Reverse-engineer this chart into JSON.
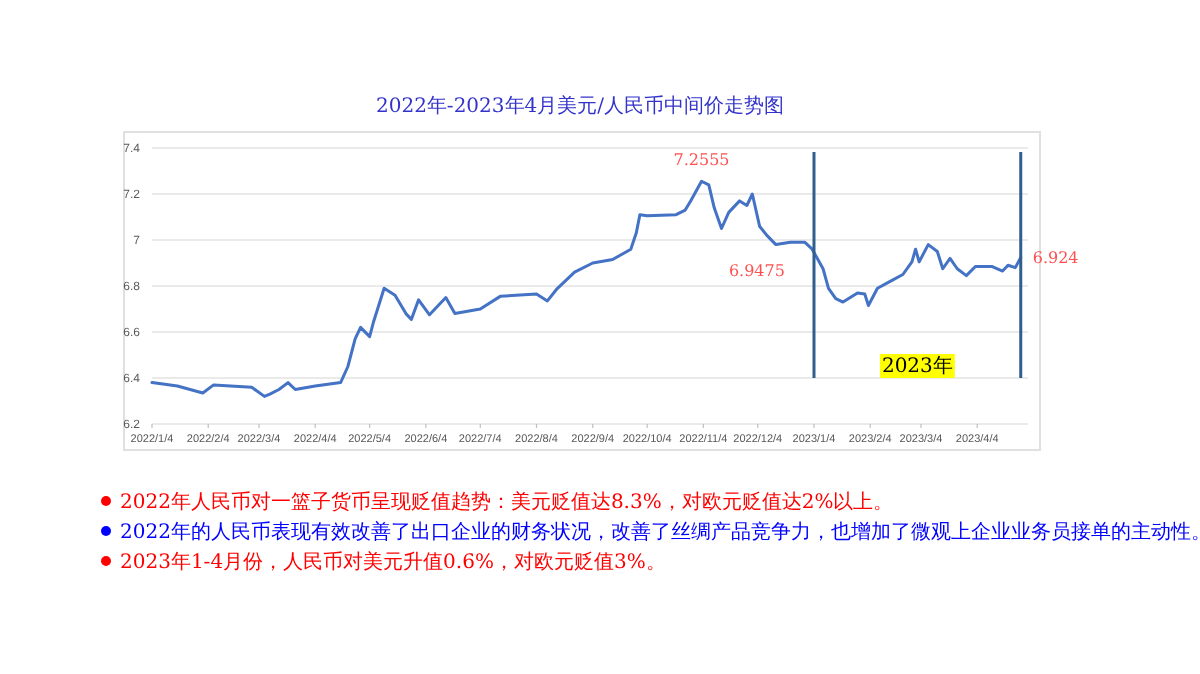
{
  "chart_data": {
    "type": "line",
    "title": "2022年-2023年4月美元/人民币中间价走势图",
    "x": [
      "2022-01-04",
      "2022-01-18",
      "2022-02-01",
      "2022-02-07",
      "2022-02-28",
      "2022-03-07",
      "2022-03-10",
      "2022-03-15",
      "2022-03-20",
      "2022-03-24",
      "2022-04-04",
      "2022-04-18",
      "2022-04-22",
      "2022-04-26",
      "2022-04-29",
      "2022-05-04",
      "2022-05-06",
      "2022-05-12",
      "2022-05-18",
      "2022-05-24",
      "2022-05-27",
      "2022-05-31",
      "2022-06-06",
      "2022-06-15",
      "2022-06-20",
      "2022-07-04",
      "2022-07-15",
      "2022-08-04",
      "2022-08-10",
      "2022-08-15",
      "2022-08-25",
      "2022-09-04",
      "2022-09-15",
      "2022-09-25",
      "2022-09-28",
      "2022-09-30",
      "2022-10-04",
      "2022-10-20",
      "2022-10-25",
      "2022-10-28",
      "2022-11-03",
      "2022-11-07",
      "2022-11-10",
      "2022-11-14",
      "2022-11-18",
      "2022-11-24",
      "2022-11-28",
      "2022-12-01",
      "2022-12-05",
      "2022-12-09",
      "2022-12-14",
      "2022-12-22",
      "2022-12-30",
      "2023-01-03",
      "2023-01-09",
      "2023-01-12",
      "2023-01-16",
      "2023-01-20",
      "2023-01-28",
      "2023-02-01",
      "2023-02-03",
      "2023-02-08",
      "2023-02-15",
      "2023-02-22",
      "2023-02-27",
      "2023-03-01",
      "2023-03-03",
      "2023-03-08",
      "2023-03-13",
      "2023-03-16",
      "2023-03-20",
      "2023-03-24",
      "2023-03-29",
      "2023-04-03",
      "2023-04-12",
      "2023-04-18",
      "2023-04-21",
      "2023-04-25",
      "2023-04-28"
    ],
    "series": [
      {
        "color": "#4472c4",
        "values": [
          6.38,
          6.365,
          6.335,
          6.37,
          6.36,
          6.32,
          6.33,
          6.35,
          6.38,
          6.35,
          6.365,
          6.38,
          6.45,
          6.57,
          6.62,
          6.58,
          6.64,
          6.79,
          6.76,
          6.68,
          6.655,
          6.74,
          6.675,
          6.75,
          6.68,
          6.7,
          6.755,
          6.765,
          6.735,
          6.785,
          6.86,
          6.9,
          6.915,
          6.96,
          7.03,
          7.11,
          7.105,
          7.11,
          7.13,
          7.17,
          7.2555,
          7.24,
          7.14,
          7.05,
          7.12,
          7.17,
          7.15,
          7.2,
          7.06,
          7.02,
          6.98,
          6.99,
          6.99,
          6.96,
          6.875,
          6.79,
          6.745,
          6.73,
          6.77,
          6.765,
          6.715,
          6.79,
          6.82,
          6.85,
          6.905,
          6.96,
          6.905,
          6.98,
          6.95,
          6.875,
          6.92,
          6.875,
          6.845,
          6.885,
          6.885,
          6.865,
          6.89,
          6.88,
          6.924
        ]
      }
    ],
    "xlim": [
      "2022-01-04",
      "2023-05-02"
    ],
    "xticks": [
      {
        "value": "2022-01-04",
        "label": "2022/1/4"
      },
      {
        "value": "2022-02-04",
        "label": "2022/2/4"
      },
      {
        "value": "2022-03-04",
        "label": "2022/3/4"
      },
      {
        "value": "2022-04-04",
        "label": "2022/4/4"
      },
      {
        "value": "2022-05-04",
        "label": "2022/5/4"
      },
      {
        "value": "2022-06-04",
        "label": "2022/6/4"
      },
      {
        "value": "2022-07-04",
        "label": "2022/7/4"
      },
      {
        "value": "2022-08-04",
        "label": "2022/8/4"
      },
      {
        "value": "2022-09-04",
        "label": "2022/9/4"
      },
      {
        "value": "2022-10-04",
        "label": "2022/10/4"
      },
      {
        "value": "2022-11-04",
        "label": "2022/11/4"
      },
      {
        "value": "2022-12-04",
        "label": "2022/12/4"
      },
      {
        "value": "2023-01-04",
        "label": "2023/1/4"
      },
      {
        "value": "2023-02-04",
        "label": "2023/2/4"
      },
      {
        "value": "2023-03-04",
        "label": "2023/3/4"
      },
      {
        "value": "2023-04-04",
        "label": "2023/4/4"
      }
    ],
    "ylim": [
      6.2,
      7.4
    ],
    "yticks": [
      6.2,
      6.4,
      6.6,
      6.8,
      7,
      7.2,
      7.4
    ],
    "grid": "y",
    "ref_lines": [
      {
        "axis": "x",
        "value": "2023-01-04",
        "color": "#2e5f8f"
      },
      {
        "axis": "x",
        "value": "2023-04-28",
        "color": "#2e5f8f"
      }
    ],
    "annotations": [
      {
        "text": "7.2555",
        "x": "2022-11-03",
        "y": 7.2555
      },
      {
        "text": "6.9475",
        "x": "2022-12-30",
        "y": 6.9475
      },
      {
        "text": "6.924",
        "x": "2023-04-28",
        "y": 6.924
      },
      "2023年",
      "2022年人民币对一篮子货币呈现贬值趋势：美元贬值达8.3%，对欧元贬值达2%以上。",
      "2022年的人民币表现有效改善了出口企业的财务状况，改善了丝绸产品竞争力，也增加了微观上企业业务员接单的主动性。",
      "2023年1-4月份，人民币对美元升值0.6%，对欧元贬值3%。"
    ]
  }
}
